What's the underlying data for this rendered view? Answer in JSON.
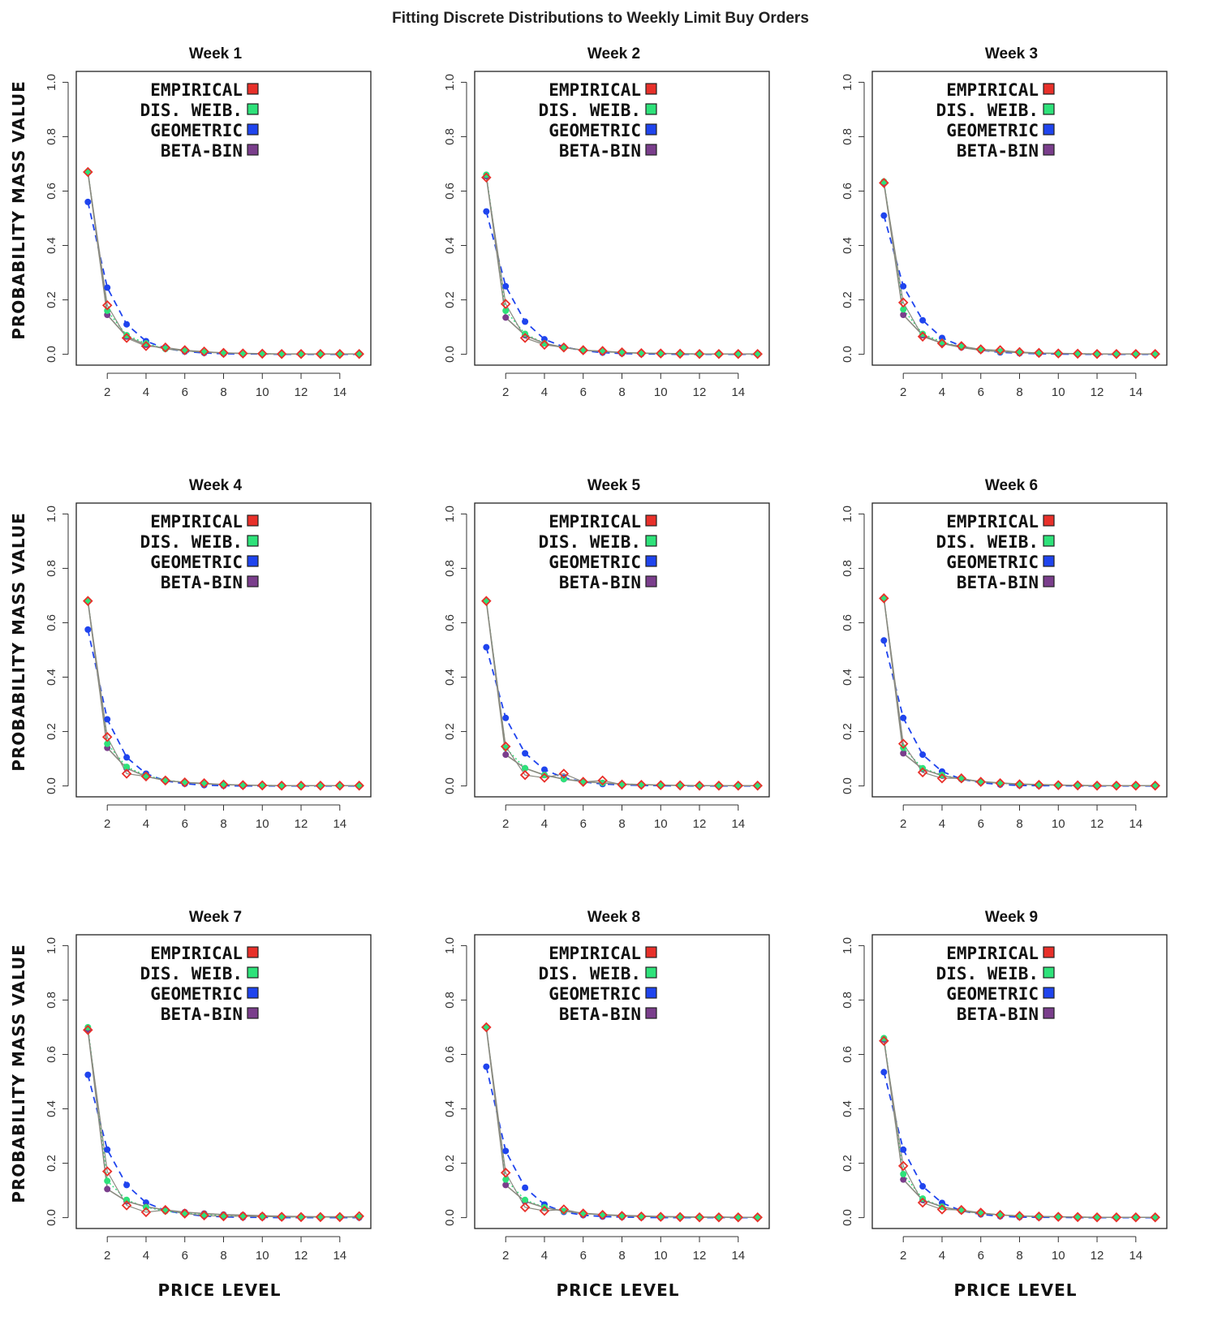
{
  "figure_title": "Fitting Discrete Distributions to Weekly Limit Buy Orders",
  "x_axis_label": "PRICE LEVEL",
  "y_axis_label": "PROBABILITY MASS VALUE",
  "colors": {
    "empirical": "#e8302a",
    "dis_weib": "#2ee27a",
    "geometric": "#1f44ee",
    "beta_bin": "#7a3e8c",
    "connector": "#8a8a80"
  },
  "legend": [
    {
      "key": "empirical",
      "label": "EMPIRICAL"
    },
    {
      "key": "dis_weib",
      "label": "DIS. WEIB."
    },
    {
      "key": "geometric",
      "label": "GEOMETRIC"
    },
    {
      "key": "beta_bin",
      "label": "BETA-BIN"
    }
  ],
  "chart_data": [
    {
      "type": "line",
      "title": "Week 1",
      "xlabel": "",
      "ylabel": "PROBABILITY MASS VALUE",
      "xlim": [
        0.4,
        15.6
      ],
      "ylim": [
        0,
        1
      ],
      "x_ticks": [
        2,
        4,
        6,
        8,
        10,
        12,
        14
      ],
      "y_ticks": [
        "0.0",
        "0.2",
        "0.4",
        "0.6",
        "0.8",
        "1.0"
      ],
      "x": [
        1,
        2,
        3,
        4,
        5,
        6,
        7,
        8,
        9,
        10,
        11,
        12,
        13,
        14,
        15
      ],
      "series": [
        {
          "name": "EMPIRICAL",
          "values": [
            0.67,
            0.18,
            0.06,
            0.03,
            0.025,
            0.015,
            0.01,
            0.005,
            0.003,
            0.002,
            0.001,
            0.001,
            0.001,
            0.001,
            0.001
          ]
        },
        {
          "name": "DIS. WEIB.",
          "values": [
            0.67,
            0.16,
            0.07,
            0.04,
            0.02,
            0.012,
            0.008,
            0.005,
            0.003,
            0.002,
            0.001,
            0.001,
            0.001,
            0.001,
            0.001
          ]
        },
        {
          "name": "GEOMETRIC",
          "values": [
            0.56,
            0.245,
            0.11,
            0.048,
            0.022,
            0.01,
            0.005,
            0.002,
            0.001,
            0.001,
            0.0,
            0.0,
            0.0,
            0.0,
            0.0
          ]
        },
        {
          "name": "BETA-BIN",
          "values": [
            0.67,
            0.145,
            0.065,
            0.035,
            0.02,
            0.013,
            0.008,
            0.005,
            0.003,
            0.002,
            0.001,
            0.001,
            0.001,
            0.001,
            0.001
          ]
        }
      ]
    },
    {
      "type": "line",
      "title": "Week 2",
      "xlabel": "",
      "ylabel": "",
      "xlim": [
        0.4,
        15.6
      ],
      "ylim": [
        0,
        1
      ],
      "x_ticks": [
        2,
        4,
        6,
        8,
        10,
        12,
        14
      ],
      "y_ticks": [
        "0.0",
        "0.2",
        "0.4",
        "0.6",
        "0.8",
        "1.0"
      ],
      "x": [
        1,
        2,
        3,
        4,
        5,
        6,
        7,
        8,
        9,
        10,
        11,
        12,
        13,
        14,
        15
      ],
      "series": [
        {
          "name": "EMPIRICAL",
          "values": [
            0.65,
            0.185,
            0.06,
            0.035,
            0.025,
            0.015,
            0.012,
            0.007,
            0.004,
            0.003,
            0.002,
            0.001,
            0.001,
            0.001,
            0.001
          ]
        },
        {
          "name": "DIS. WEIB.",
          "values": [
            0.66,
            0.16,
            0.075,
            0.04,
            0.025,
            0.015,
            0.01,
            0.006,
            0.004,
            0.003,
            0.002,
            0.001,
            0.001,
            0.001,
            0.001
          ]
        },
        {
          "name": "GEOMETRIC",
          "values": [
            0.525,
            0.25,
            0.12,
            0.055,
            0.027,
            0.013,
            0.006,
            0.003,
            0.001,
            0.001,
            0.0,
            0.0,
            0.0,
            0.0,
            0.0
          ]
        },
        {
          "name": "BETA-BIN",
          "values": [
            0.655,
            0.135,
            0.07,
            0.04,
            0.025,
            0.015,
            0.01,
            0.006,
            0.004,
            0.003,
            0.002,
            0.001,
            0.001,
            0.001,
            0.001
          ]
        }
      ]
    },
    {
      "type": "line",
      "title": "Week 3",
      "xlabel": "",
      "ylabel": "",
      "xlim": [
        0.4,
        15.6
      ],
      "ylim": [
        0,
        1
      ],
      "x_ticks": [
        2,
        4,
        6,
        8,
        10,
        12,
        14
      ],
      "y_ticks": [
        "0.0",
        "0.2",
        "0.4",
        "0.6",
        "0.8",
        "1.0"
      ],
      "x": [
        1,
        2,
        3,
        4,
        5,
        6,
        7,
        8,
        9,
        10,
        11,
        12,
        13,
        14,
        15
      ],
      "series": [
        {
          "name": "EMPIRICAL",
          "values": [
            0.63,
            0.19,
            0.065,
            0.04,
            0.03,
            0.018,
            0.015,
            0.008,
            0.005,
            0.003,
            0.002,
            0.001,
            0.001,
            0.001,
            0.001
          ]
        },
        {
          "name": "DIS. WEIB.",
          "values": [
            0.635,
            0.165,
            0.075,
            0.045,
            0.027,
            0.016,
            0.01,
            0.006,
            0.004,
            0.003,
            0.002,
            0.001,
            0.001,
            0.001,
            0.001
          ]
        },
        {
          "name": "GEOMETRIC",
          "values": [
            0.51,
            0.25,
            0.125,
            0.06,
            0.03,
            0.015,
            0.007,
            0.004,
            0.002,
            0.001,
            0.0,
            0.0,
            0.0,
            0.0,
            0.0
          ]
        },
        {
          "name": "BETA-BIN",
          "values": [
            0.63,
            0.145,
            0.07,
            0.04,
            0.025,
            0.015,
            0.01,
            0.006,
            0.004,
            0.003,
            0.002,
            0.001,
            0.001,
            0.001,
            0.001
          ]
        }
      ]
    },
    {
      "type": "line",
      "title": "Week 4",
      "xlabel": "",
      "ylabel": "PROBABILITY MASS VALUE",
      "xlim": [
        0.4,
        15.6
      ],
      "ylim": [
        0,
        1
      ],
      "x_ticks": [
        2,
        4,
        6,
        8,
        10,
        12,
        14
      ],
      "y_ticks": [
        "0.0",
        "0.2",
        "0.4",
        "0.6",
        "0.8",
        "1.0"
      ],
      "x": [
        1,
        2,
        3,
        4,
        5,
        6,
        7,
        8,
        9,
        10,
        11,
        12,
        13,
        14,
        15
      ],
      "series": [
        {
          "name": "EMPIRICAL",
          "values": [
            0.68,
            0.18,
            0.045,
            0.035,
            0.02,
            0.013,
            0.01,
            0.005,
            0.003,
            0.002,
            0.001,
            0.001,
            0.001,
            0.001,
            0.001
          ]
        },
        {
          "name": "DIS. WEIB.",
          "values": [
            0.68,
            0.155,
            0.07,
            0.038,
            0.022,
            0.013,
            0.008,
            0.005,
            0.003,
            0.002,
            0.001,
            0.001,
            0.001,
            0.001,
            0.001
          ]
        },
        {
          "name": "GEOMETRIC",
          "values": [
            0.575,
            0.245,
            0.105,
            0.045,
            0.019,
            0.008,
            0.003,
            0.001,
            0.0,
            0.0,
            0.0,
            0.0,
            0.0,
            0.0,
            0.0
          ]
        },
        {
          "name": "BETA-BIN",
          "values": [
            0.68,
            0.14,
            0.065,
            0.035,
            0.02,
            0.013,
            0.008,
            0.005,
            0.003,
            0.002,
            0.001,
            0.001,
            0.001,
            0.001,
            0.001
          ]
        }
      ]
    },
    {
      "type": "line",
      "title": "Week 5",
      "xlabel": "",
      "ylabel": "",
      "xlim": [
        0.4,
        15.6
      ],
      "ylim": [
        0,
        1
      ],
      "x_ticks": [
        2,
        4,
        6,
        8,
        10,
        12,
        14
      ],
      "y_ticks": [
        "0.0",
        "0.2",
        "0.4",
        "0.6",
        "0.8",
        "1.0"
      ],
      "x": [
        1,
        2,
        3,
        4,
        5,
        6,
        7,
        8,
        9,
        10,
        11,
        12,
        13,
        14,
        15
      ],
      "series": [
        {
          "name": "EMPIRICAL",
          "values": [
            0.68,
            0.145,
            0.04,
            0.03,
            0.045,
            0.015,
            0.02,
            0.005,
            0.004,
            0.003,
            0.002,
            0.001,
            0.001,
            0.001,
            0.001
          ]
        },
        {
          "name": "DIS. WEIB.",
          "values": [
            0.68,
            0.14,
            0.065,
            0.04,
            0.025,
            0.016,
            0.011,
            0.007,
            0.005,
            0.003,
            0.002,
            0.001,
            0.001,
            0.001,
            0.001
          ]
        },
        {
          "name": "GEOMETRIC",
          "values": [
            0.51,
            0.25,
            0.12,
            0.06,
            0.03,
            0.015,
            0.007,
            0.004,
            0.002,
            0.001,
            0.0,
            0.0,
            0.0,
            0.0,
            0.0
          ]
        },
        {
          "name": "BETA-BIN",
          "values": [
            0.68,
            0.115,
            0.065,
            0.04,
            0.025,
            0.016,
            0.011,
            0.007,
            0.005,
            0.003,
            0.002,
            0.001,
            0.001,
            0.001,
            0.001
          ]
        }
      ]
    },
    {
      "type": "line",
      "title": "Week 6",
      "xlabel": "",
      "ylabel": "",
      "xlim": [
        0.4,
        15.6
      ],
      "ylim": [
        0,
        1
      ],
      "x_ticks": [
        2,
        4,
        6,
        8,
        10,
        12,
        14
      ],
      "y_ticks": [
        "0.0",
        "0.2",
        "0.4",
        "0.6",
        "0.8",
        "1.0"
      ],
      "x": [
        1,
        2,
        3,
        4,
        5,
        6,
        7,
        8,
        9,
        10,
        11,
        12,
        13,
        14,
        15
      ],
      "series": [
        {
          "name": "EMPIRICAL",
          "values": [
            0.69,
            0.155,
            0.05,
            0.028,
            0.028,
            0.015,
            0.01,
            0.006,
            0.004,
            0.003,
            0.002,
            0.001,
            0.001,
            0.001,
            0.001
          ]
        },
        {
          "name": "DIS. WEIB.",
          "values": [
            0.69,
            0.14,
            0.065,
            0.04,
            0.025,
            0.015,
            0.01,
            0.006,
            0.004,
            0.003,
            0.002,
            0.001,
            0.001,
            0.001,
            0.001
          ]
        },
        {
          "name": "GEOMETRIC",
          "values": [
            0.535,
            0.25,
            0.115,
            0.053,
            0.025,
            0.012,
            0.005,
            0.002,
            0.001,
            0.001,
            0.0,
            0.0,
            0.0,
            0.0,
            0.0
          ]
        },
        {
          "name": "BETA-BIN",
          "values": [
            0.69,
            0.12,
            0.062,
            0.038,
            0.025,
            0.016,
            0.011,
            0.007,
            0.005,
            0.003,
            0.002,
            0.001,
            0.001,
            0.001,
            0.001
          ]
        }
      ]
    },
    {
      "type": "line",
      "title": "Week 7",
      "xlabel": "PRICE LEVEL",
      "ylabel": "PROBABILITY MASS VALUE",
      "xlim": [
        0.4,
        15.6
      ],
      "ylim": [
        0,
        1
      ],
      "x_ticks": [
        2,
        4,
        6,
        8,
        10,
        12,
        14
      ],
      "y_ticks": [
        "0.0",
        "0.2",
        "0.4",
        "0.6",
        "0.8",
        "1.0"
      ],
      "x": [
        1,
        2,
        3,
        4,
        5,
        6,
        7,
        8,
        9,
        10,
        11,
        12,
        13,
        14,
        15
      ],
      "series": [
        {
          "name": "EMPIRICAL",
          "values": [
            0.69,
            0.17,
            0.045,
            0.02,
            0.028,
            0.015,
            0.008,
            0.005,
            0.005,
            0.004,
            0.003,
            0.002,
            0.002,
            0.002,
            0.005
          ]
        },
        {
          "name": "DIS. WEIB.",
          "values": [
            0.7,
            0.135,
            0.065,
            0.038,
            0.024,
            0.016,
            0.011,
            0.008,
            0.006,
            0.004,
            0.003,
            0.002,
            0.002,
            0.002,
            0.002
          ]
        },
        {
          "name": "GEOMETRIC",
          "values": [
            0.525,
            0.25,
            0.12,
            0.055,
            0.026,
            0.013,
            0.006,
            0.003,
            0.001,
            0.001,
            0.0,
            0.0,
            0.0,
            0.0,
            0.0
          ]
        },
        {
          "name": "BETA-BIN",
          "values": [
            0.69,
            0.105,
            0.06,
            0.04,
            0.028,
            0.02,
            0.015,
            0.011,
            0.009,
            0.007,
            0.005,
            0.004,
            0.003,
            0.003,
            0.002
          ]
        }
      ]
    },
    {
      "type": "line",
      "title": "Week 8",
      "xlabel": "PRICE LEVEL",
      "ylabel": "",
      "xlim": [
        0.4,
        15.6
      ],
      "ylim": [
        0,
        1
      ],
      "x_ticks": [
        2,
        4,
        6,
        8,
        10,
        12,
        14
      ],
      "y_ticks": [
        "0.0",
        "0.2",
        "0.4",
        "0.6",
        "0.8",
        "1.0"
      ],
      "x": [
        1,
        2,
        3,
        4,
        5,
        6,
        7,
        8,
        9,
        10,
        11,
        12,
        13,
        14,
        15
      ],
      "series": [
        {
          "name": "EMPIRICAL",
          "values": [
            0.7,
            0.165,
            0.038,
            0.025,
            0.03,
            0.015,
            0.01,
            0.006,
            0.004,
            0.003,
            0.002,
            0.001,
            0.001,
            0.001,
            0.001
          ]
        },
        {
          "name": "DIS. WEIB.",
          "values": [
            0.7,
            0.14,
            0.065,
            0.038,
            0.024,
            0.015,
            0.01,
            0.007,
            0.005,
            0.003,
            0.002,
            0.001,
            0.001,
            0.001,
            0.001
          ]
        },
        {
          "name": "GEOMETRIC",
          "values": [
            0.555,
            0.245,
            0.11,
            0.048,
            0.021,
            0.009,
            0.004,
            0.002,
            0.001,
            0.0,
            0.0,
            0.0,
            0.0,
            0.0,
            0.0
          ]
        },
        {
          "name": "BETA-BIN",
          "values": [
            0.7,
            0.12,
            0.06,
            0.037,
            0.024,
            0.016,
            0.011,
            0.008,
            0.006,
            0.004,
            0.003,
            0.002,
            0.002,
            0.001,
            0.001
          ]
        }
      ]
    },
    {
      "type": "line",
      "title": "Week 9",
      "xlabel": "PRICE LEVEL",
      "ylabel": "",
      "xlim": [
        0.4,
        15.6
      ],
      "ylim": [
        0,
        1
      ],
      "x_ticks": [
        2,
        4,
        6,
        8,
        10,
        12,
        14
      ],
      "y_ticks": [
        "0.0",
        "0.2",
        "0.4",
        "0.6",
        "0.8",
        "1.0"
      ],
      "x": [
        1,
        2,
        3,
        4,
        5,
        6,
        7,
        8,
        9,
        10,
        11,
        12,
        13,
        14,
        15
      ],
      "series": [
        {
          "name": "EMPIRICAL",
          "values": [
            0.65,
            0.19,
            0.055,
            0.03,
            0.028,
            0.018,
            0.01,
            0.006,
            0.004,
            0.003,
            0.002,
            0.001,
            0.001,
            0.001,
            0.001
          ]
        },
        {
          "name": "DIS. WEIB.",
          "values": [
            0.66,
            0.16,
            0.07,
            0.04,
            0.025,
            0.015,
            0.01,
            0.006,
            0.004,
            0.003,
            0.002,
            0.001,
            0.001,
            0.001,
            0.001
          ]
        },
        {
          "name": "GEOMETRIC",
          "values": [
            0.535,
            0.25,
            0.115,
            0.054,
            0.025,
            0.012,
            0.005,
            0.002,
            0.001,
            0.001,
            0.0,
            0.0,
            0.0,
            0.0,
            0.0
          ]
        },
        {
          "name": "BETA-BIN",
          "values": [
            0.655,
            0.14,
            0.065,
            0.04,
            0.025,
            0.016,
            0.01,
            0.006,
            0.004,
            0.003,
            0.002,
            0.001,
            0.001,
            0.001,
            0.001
          ]
        }
      ]
    }
  ]
}
